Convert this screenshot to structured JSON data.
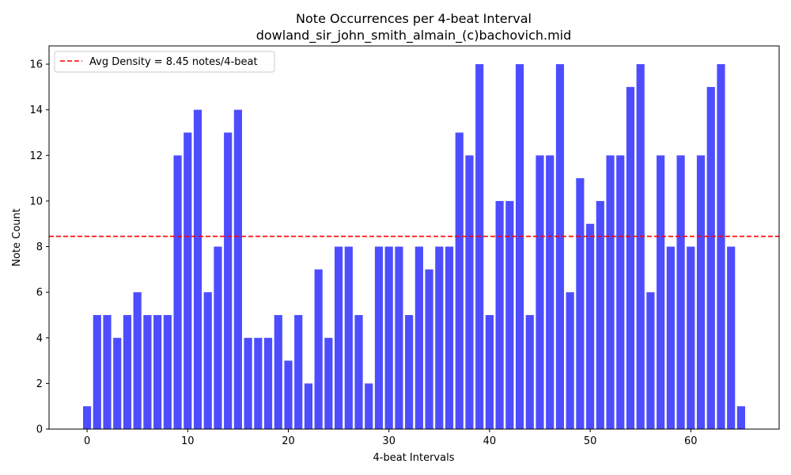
{
  "chart_data": {
    "type": "bar",
    "title": "Note Occurrences per 4-beat Interval",
    "subtitle": "dowland_sir_john_smith_almain_(c)bachovich.mid",
    "xlabel": "4-beat Intervals",
    "ylabel": "Note Count",
    "x": [
      0,
      1,
      2,
      3,
      4,
      5,
      6,
      7,
      8,
      9,
      10,
      11,
      12,
      13,
      14,
      15,
      16,
      17,
      18,
      19,
      20,
      21,
      22,
      23,
      24,
      25,
      26,
      27,
      28,
      29,
      30,
      31,
      32,
      33,
      34,
      35,
      36,
      37,
      38,
      39,
      40,
      41,
      42,
      43,
      44,
      45,
      46,
      47,
      48,
      49,
      50,
      51,
      52,
      53,
      54,
      55,
      56,
      57,
      58,
      59,
      60,
      61,
      62,
      63,
      64,
      65
    ],
    "values": [
      1,
      5,
      5,
      4,
      5,
      6,
      5,
      5,
      5,
      12,
      13,
      14,
      6,
      8,
      13,
      14,
      4,
      4,
      4,
      5,
      3,
      5,
      2,
      7,
      4,
      8,
      8,
      5,
      2,
      8,
      8,
      8,
      5,
      8,
      7,
      8,
      8,
      13,
      12,
      16,
      5,
      10,
      10,
      16,
      5,
      12,
      12,
      16,
      6,
      11,
      9,
      10,
      12,
      12,
      15,
      16,
      6,
      12,
      8,
      12,
      8,
      12,
      15,
      16,
      8,
      1
    ],
    "xlim": [
      -3.78,
      68.78
    ],
    "ylim": [
      0,
      16.8
    ],
    "xticks": [
      0,
      10,
      20,
      30,
      40,
      50,
      60
    ],
    "yticks": [
      0,
      2,
      4,
      6,
      8,
      10,
      12,
      14,
      16
    ],
    "bar_color": "#4d4dff",
    "reference_line": {
      "value": 8.45,
      "color": "#ff0000",
      "style": "dashed",
      "label": "Avg Density = 8.45 notes/4-beat"
    },
    "legend_position": "top-left",
    "grid": false
  }
}
